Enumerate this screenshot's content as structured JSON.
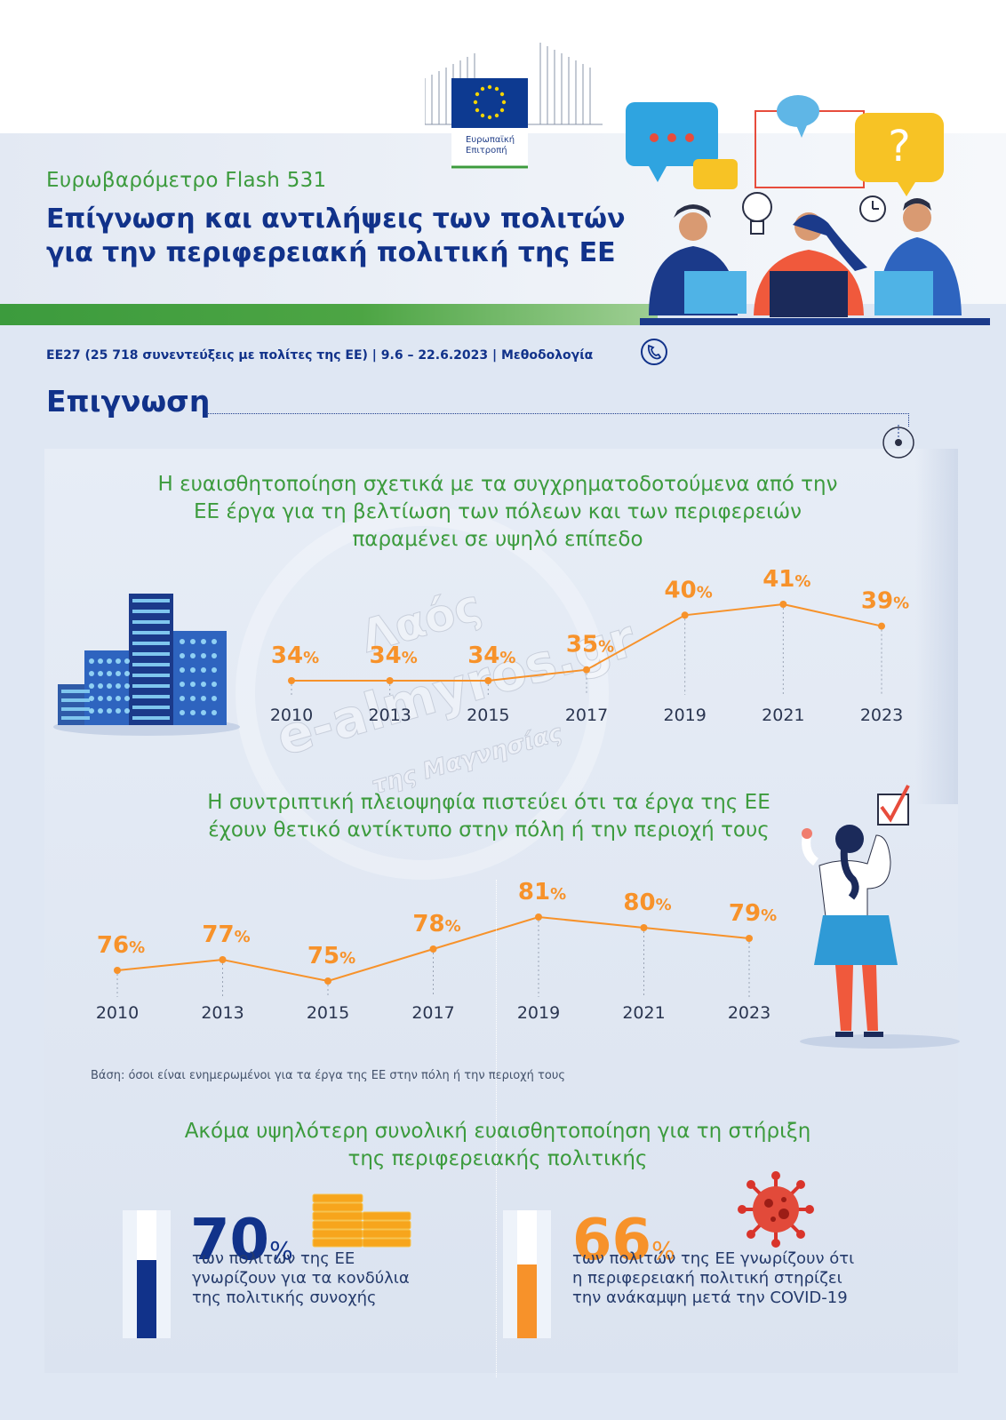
{
  "header": {
    "logo_text_line1": "Ευρωπαϊκή",
    "logo_text_line2": "Επιτροπή",
    "subtitle": "Ευρωβαρόμετρο Flash 531",
    "title_line1": "Επίγνωση και αντιλήψεις των πολιτών",
    "title_line2": "για την περιφερειακή πολιτική της ΕΕ",
    "meta": "ΕΕ27 (25 718 συνεντεύξεις με πολίτες της ΕΕ) | 9.6 – 22.6.2023 | Μεθοδολογία"
  },
  "section": {
    "title": "Επιγνωση"
  },
  "chart1": {
    "heading_line1": "Η ευαισθητοποίηση σχετικά με τα συγχρηματοδοτούμενα από την",
    "heading_line2": "ΕΕ έργα για τη βελτίωση των πόλεων και των περιφερειών",
    "heading_line3": "παραμένει σε υψηλό επίπεδο"
  },
  "chart2": {
    "heading_line1": "Η συντριπτική πλειοψηφία πιστεύει ότι τα έργα της ΕΕ",
    "heading_line2": "έχουν θετικό αντίκτυπο στην πόλη ή την περιοχή τους",
    "base_note": "Βάση: όσοι είναι ενημερωμένοι για τα έργα της ΕΕ στην πόλη ή την περιοχή τους"
  },
  "chart_data": [
    {
      "type": "line",
      "x": [
        "2010",
        "2013",
        "2015",
        "2017",
        "2019",
        "2021",
        "2023"
      ],
      "values": [
        34,
        34,
        34,
        35,
        40,
        41,
        39
      ],
      "unit": "%",
      "color": "#f7922a"
    },
    {
      "type": "line",
      "x": [
        "2010",
        "2013",
        "2015",
        "2017",
        "2019",
        "2021",
        "2023"
      ],
      "values": [
        76,
        77,
        75,
        78,
        81,
        80,
        79
      ],
      "unit": "%",
      "color": "#f7922a"
    }
  ],
  "summary": {
    "heading_line1": "Ακόμα υψηλότερη συνολική ευαισθητοποίηση για τη στήριξη",
    "heading_line2": "της περιφερειακής πολιτικής",
    "stat1": {
      "value": "70",
      "pct": "%",
      "fill": 0.7,
      "color": "#11328a",
      "desc_line1": "των πολιτών της ΕΕ",
      "desc_line2": "γνωρίζουν για τα κονδύλια",
      "desc_line3": "της πολιτικής συνοχής"
    },
    "stat2": {
      "value": "66",
      "pct": "%",
      "fill": 0.66,
      "color": "#f7922a",
      "desc_line1": "των πολιτών της ΕΕ γνωρίζουν ότι",
      "desc_line2": "η περιφερειακή πολιτική στηρίζει",
      "desc_line3": "την ανάκαμψη μετά την COVID-19"
    }
  },
  "watermark": {
    "line1": "Λαός",
    "line2": "e-almyros.gr",
    "line3": "της Μαγνησίας"
  },
  "icons": [
    "eu-flag-icon",
    "speech-bubble-icon",
    "question-icon",
    "lightbulb-icon",
    "clock-icon",
    "phone-icon",
    "target-icon",
    "buildings-icon",
    "checkbox-icon",
    "coins-icon",
    "virus-icon"
  ]
}
